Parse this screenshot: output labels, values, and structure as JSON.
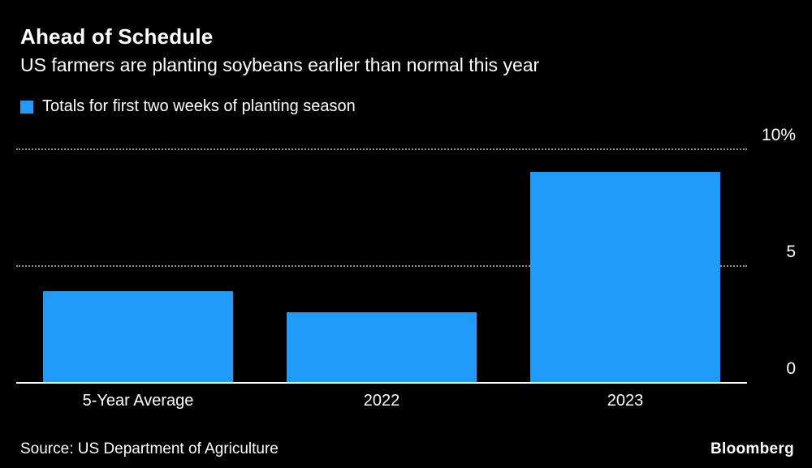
{
  "header": {
    "title": "Ahead of Schedule",
    "subtitle": "US farmers are planting soybeans earlier than normal this year"
  },
  "legend": {
    "label": "Totals for first two weeks of planting season",
    "swatch_color": "#219bfa"
  },
  "chart_data": {
    "type": "bar",
    "title": "Ahead of Schedule",
    "subtitle": "US farmers are planting soybeans earlier than normal this year",
    "categories": [
      "5-Year Average",
      "2022",
      "2023"
    ],
    "values": [
      3.9,
      3.0,
      9.0
    ],
    "unit": "%",
    "ylim": [
      0,
      10
    ],
    "yticks": [
      {
        "value": 10,
        "label": "10%"
      },
      {
        "value": 5,
        "label": "5"
      },
      {
        "value": 0,
        "label": "0"
      }
    ],
    "bar_color": "#219bfa",
    "grid": "horizontal-dotted",
    "legend_position": "top-left",
    "background": "#000000"
  },
  "footer": {
    "source": "Source: US Department of Agriculture",
    "brand": "Bloomberg"
  }
}
